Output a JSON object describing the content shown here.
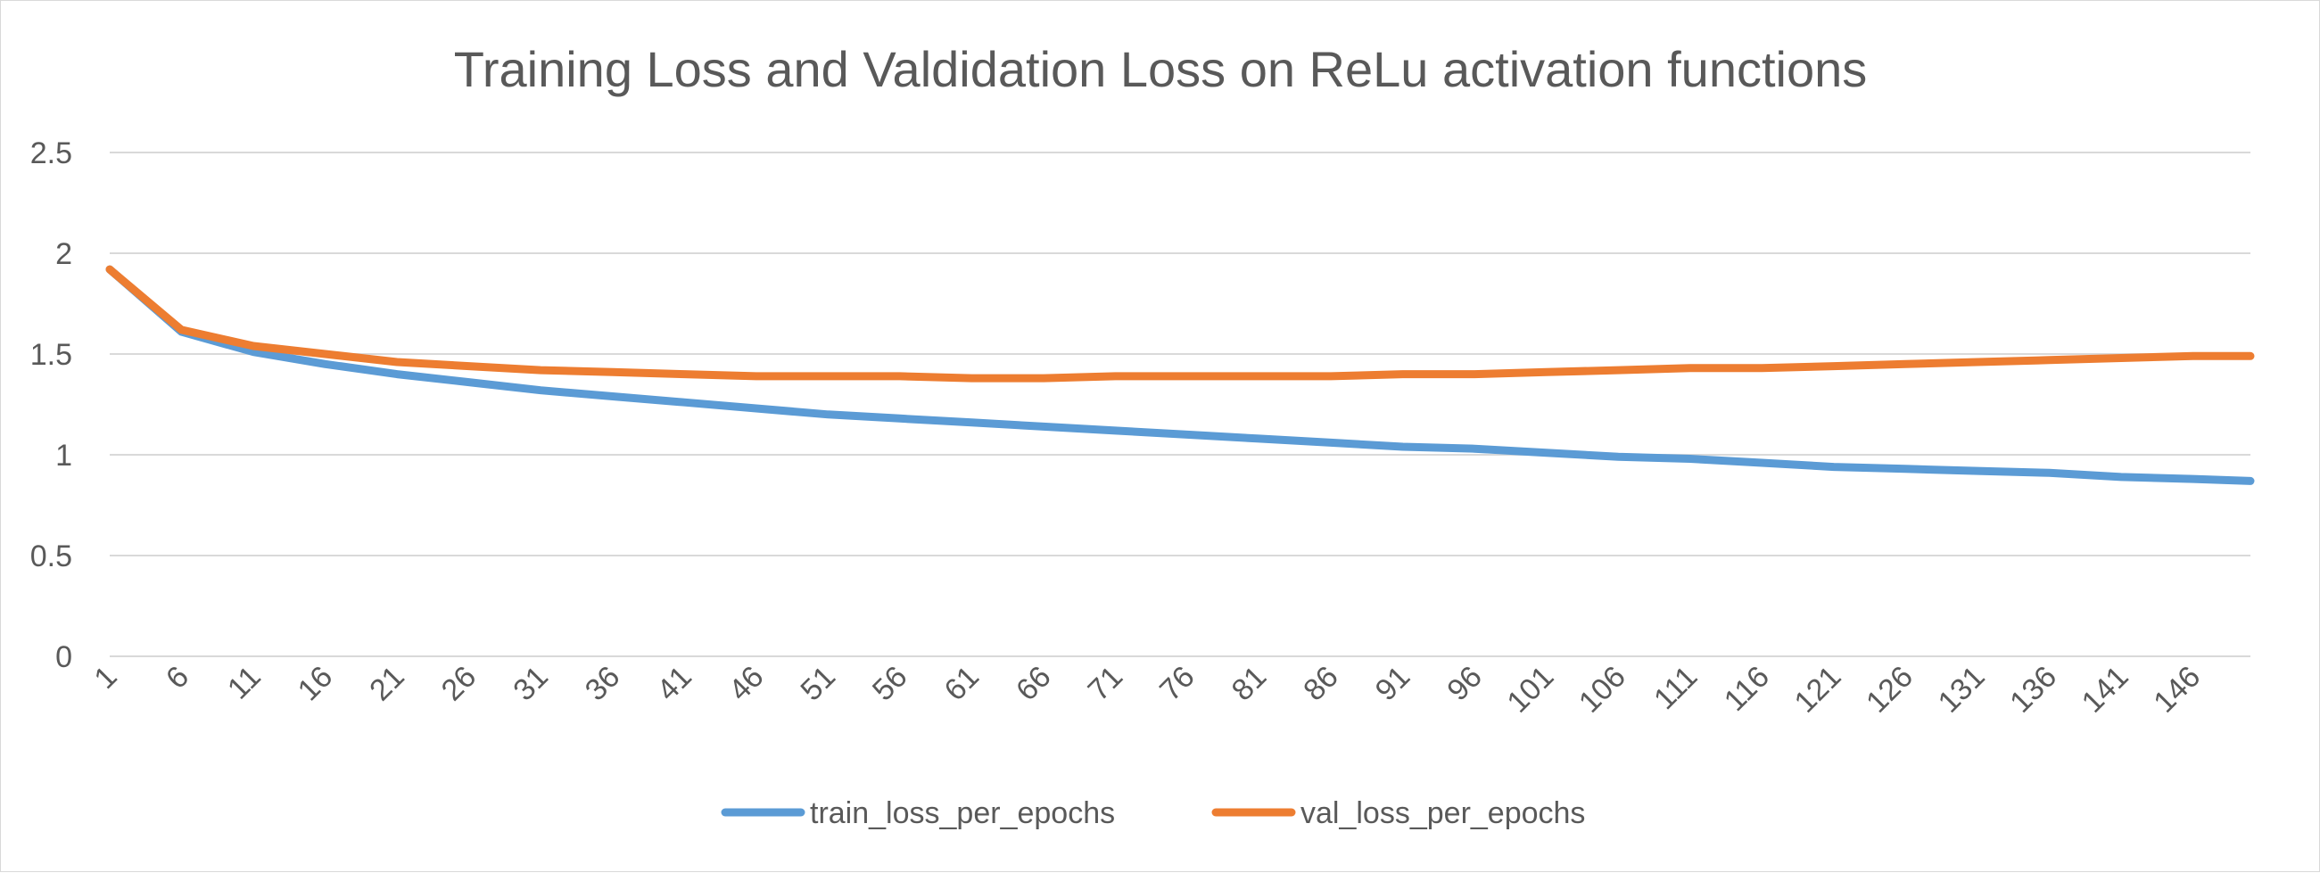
{
  "chart_data": {
    "type": "line",
    "title": "Training Loss and Valdidation Loss on ReLu activation functions",
    "xlabel": "",
    "ylabel": "",
    "ylim": [
      0,
      2.5
    ],
    "yticks": [
      "0",
      "0.5",
      "1",
      "1.5",
      "2",
      "2.5"
    ],
    "xticks": [
      "1",
      "6",
      "11",
      "16",
      "21",
      "26",
      "31",
      "36",
      "41",
      "46",
      "51",
      "56",
      "61",
      "66",
      "71",
      "76",
      "81",
      "86",
      "91",
      "96",
      "101",
      "106",
      "111",
      "116",
      "121",
      "126",
      "131",
      "136",
      "141",
      "146"
    ],
    "x": [
      1,
      6,
      11,
      16,
      21,
      26,
      31,
      36,
      41,
      46,
      51,
      56,
      61,
      66,
      71,
      76,
      81,
      86,
      91,
      96,
      101,
      106,
      111,
      116,
      121,
      126,
      131,
      136,
      141,
      146,
      150
    ],
    "grid": true,
    "legend_position": "bottom",
    "series": [
      {
        "name": "train_loss_per_epochs",
        "color": "#5b9bd5",
        "values": [
          1.92,
          1.61,
          1.51,
          1.45,
          1.4,
          1.36,
          1.32,
          1.29,
          1.26,
          1.23,
          1.2,
          1.18,
          1.16,
          1.14,
          1.12,
          1.1,
          1.08,
          1.06,
          1.04,
          1.03,
          1.01,
          0.99,
          0.98,
          0.96,
          0.94,
          0.93,
          0.92,
          0.91,
          0.89,
          0.88,
          0.87
        ]
      },
      {
        "name": "val_loss_per_epochs",
        "color": "#ed7d31",
        "values": [
          1.92,
          1.62,
          1.54,
          1.5,
          1.46,
          1.44,
          1.42,
          1.41,
          1.4,
          1.39,
          1.39,
          1.39,
          1.38,
          1.38,
          1.39,
          1.39,
          1.39,
          1.39,
          1.4,
          1.4,
          1.41,
          1.42,
          1.43,
          1.43,
          1.44,
          1.45,
          1.46,
          1.47,
          1.48,
          1.49,
          1.49
        ]
      }
    ]
  }
}
